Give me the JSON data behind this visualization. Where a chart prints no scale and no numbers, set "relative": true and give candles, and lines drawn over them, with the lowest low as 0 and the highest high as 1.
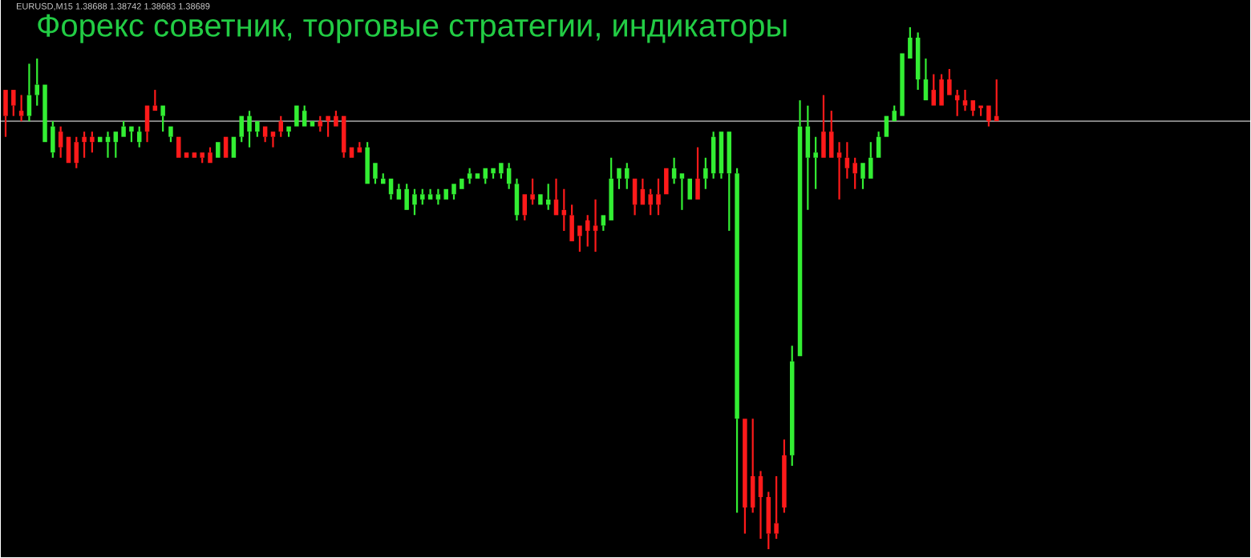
{
  "chart_data": {
    "type": "candlestick",
    "title": "Форекс советник, торговые стратегии, индикаторы",
    "annotations": [
      "EURUSD,M15  1.38688 1.38742 1.38683 1.38689"
    ],
    "relative": true,
    "categories": [
      null,
      null,
      null,
      null,
      null,
      null,
      null,
      null,
      null,
      null,
      null,
      null,
      null,
      null,
      null,
      null,
      null,
      null,
      null,
      null,
      null,
      null,
      null,
      null,
      null,
      null,
      null,
      null,
      null,
      null,
      null,
      null,
      null,
      null,
      null,
      null,
      null,
      null,
      null,
      null,
      null,
      null,
      null,
      null,
      null,
      null,
      null,
      null,
      null,
      null,
      null,
      null,
      null,
      null,
      null,
      null,
      null,
      null,
      null,
      null,
      null,
      null,
      null,
      null,
      null,
      null,
      null,
      null,
      null,
      null,
      null,
      null,
      null,
      null,
      null,
      null,
      null,
      null,
      null,
      null,
      null,
      null,
      null,
      null,
      null,
      null,
      null,
      null,
      null,
      null,
      null,
      null,
      null,
      null,
      null,
      null,
      null,
      null,
      null,
      null,
      null,
      null,
      null,
      null,
      null,
      null,
      null,
      null,
      null,
      null,
      null,
      null,
      null,
      null,
      null,
      null,
      null,
      null,
      null,
      null,
      null,
      null,
      null,
      null,
      null,
      null,
      null
    ],
    "ohlc": [
      [
        0.88,
        0.88,
        0.79,
        0.83
      ],
      [
        0.88,
        0.88,
        0.83,
        0.85
      ],
      [
        0.84,
        0.87,
        0.82,
        0.83
      ],
      [
        0.83,
        0.93,
        0.82,
        0.87
      ],
      [
        0.87,
        0.94,
        0.85,
        0.89
      ],
      [
        0.78,
        0.89,
        0.78,
        0.89
      ],
      [
        0.76,
        0.82,
        0.75,
        0.81
      ],
      [
        0.8,
        0.81,
        0.75,
        0.77
      ],
      [
        0.79,
        0.79,
        0.74,
        0.74
      ],
      [
        0.78,
        0.79,
        0.73,
        0.74
      ],
      [
        0.79,
        0.8,
        0.75,
        0.78
      ],
      [
        0.79,
        0.8,
        0.76,
        0.78
      ],
      [
        0.78,
        0.79,
        0.78,
        0.79
      ],
      [
        0.78,
        0.8,
        0.75,
        0.79
      ],
      [
        0.78,
        0.8,
        0.75,
        0.8
      ],
      [
        0.79,
        0.82,
        0.79,
        0.81
      ],
      [
        0.8,
        0.81,
        0.78,
        0.81
      ],
      [
        0.78,
        0.81,
        0.77,
        0.8
      ],
      [
        0.85,
        0.85,
        0.78,
        0.8
      ],
      [
        0.85,
        0.88,
        0.84,
        0.84
      ],
      [
        0.83,
        0.85,
        0.8,
        0.85
      ],
      [
        0.79,
        0.81,
        0.78,
        0.81
      ],
      [
        0.79,
        0.79,
        0.75,
        0.75
      ],
      [
        0.76,
        0.76,
        0.75,
        0.75
      ],
      [
        0.76,
        0.76,
        0.75,
        0.75
      ],
      [
        0.76,
        0.76,
        0.74,
        0.75
      ],
      [
        0.76,
        0.77,
        0.74,
        0.74
      ],
      [
        0.75,
        0.78,
        0.75,
        0.78
      ],
      [
        0.79,
        0.79,
        0.75,
        0.75
      ],
      [
        0.75,
        0.79,
        0.75,
        0.79
      ],
      [
        0.79,
        0.83,
        0.78,
        0.83
      ],
      [
        0.8,
        0.84,
        0.77,
        0.83
      ],
      [
        0.8,
        0.82,
        0.79,
        0.82
      ],
      [
        0.81,
        0.81,
        0.78,
        0.79
      ],
      [
        0.8,
        0.8,
        0.77,
        0.79
      ],
      [
        0.82,
        0.83,
        0.79,
        0.8
      ],
      [
        0.8,
        0.81,
        0.79,
        0.81
      ],
      [
        0.81,
        0.85,
        0.81,
        0.85
      ],
      [
        0.81,
        0.85,
        0.81,
        0.84
      ],
      [
        0.81,
        0.82,
        0.81,
        0.82
      ],
      [
        0.82,
        0.83,
        0.8,
        0.81
      ],
      [
        0.83,
        0.83,
        0.79,
        0.82
      ],
      [
        0.83,
        0.84,
        0.81,
        0.81
      ],
      [
        0.83,
        0.83,
        0.75,
        0.76
      ],
      [
        0.77,
        0.77,
        0.75,
        0.75
      ],
      [
        0.77,
        0.78,
        0.76,
        0.76
      ],
      [
        0.7,
        0.78,
        0.7,
        0.77
      ],
      [
        0.71,
        0.74,
        0.7,
        0.74
      ],
      [
        0.7,
        0.72,
        0.7,
        0.71
      ],
      [
        0.68,
        0.71,
        0.67,
        0.71
      ],
      [
        0.67,
        0.7,
        0.67,
        0.69
      ],
      [
        0.65,
        0.7,
        0.65,
        0.69
      ],
      [
        0.66,
        0.69,
        0.64,
        0.68
      ],
      [
        0.67,
        0.69,
        0.66,
        0.68
      ],
      [
        0.67,
        0.69,
        0.67,
        0.68
      ],
      [
        0.67,
        0.69,
        0.66,
        0.68
      ],
      [
        0.67,
        0.69,
        0.67,
        0.69
      ],
      [
        0.68,
        0.7,
        0.67,
        0.7
      ],
      [
        0.69,
        0.71,
        0.69,
        0.71
      ],
      [
        0.71,
        0.73,
        0.7,
        0.72
      ],
      [
        0.71,
        0.72,
        0.71,
        0.72
      ],
      [
        0.71,
        0.73,
        0.7,
        0.73
      ],
      [
        0.72,
        0.73,
        0.71,
        0.73
      ],
      [
        0.72,
        0.74,
        0.71,
        0.74
      ],
      [
        0.7,
        0.74,
        0.69,
        0.73
      ],
      [
        0.64,
        0.71,
        0.63,
        0.7
      ],
      [
        0.68,
        0.68,
        0.63,
        0.64
      ],
      [
        0.68,
        0.71,
        0.66,
        0.67
      ],
      [
        0.66,
        0.68,
        0.66,
        0.68
      ],
      [
        0.66,
        0.7,
        0.65,
        0.67
      ],
      [
        0.67,
        0.71,
        0.64,
        0.64
      ],
      [
        0.65,
        0.69,
        0.61,
        0.64
      ],
      [
        0.64,
        0.66,
        0.59,
        0.59
      ],
      [
        0.62,
        0.62,
        0.57,
        0.6
      ],
      [
        0.63,
        0.64,
        0.58,
        0.61
      ],
      [
        0.62,
        0.67,
        0.57,
        0.61
      ],
      [
        0.62,
        0.64,
        0.61,
        0.64
      ],
      [
        0.63,
        0.75,
        0.63,
        0.71
      ],
      [
        0.71,
        0.73,
        0.69,
        0.73
      ],
      [
        0.71,
        0.74,
        0.69,
        0.73
      ],
      [
        0.71,
        0.71,
        0.64,
        0.66
      ],
      [
        0.69,
        0.71,
        0.66,
        0.66
      ],
      [
        0.68,
        0.69,
        0.64,
        0.66
      ],
      [
        0.68,
        0.71,
        0.64,
        0.66
      ],
      [
        0.73,
        0.73,
        0.68,
        0.68
      ],
      [
        0.71,
        0.75,
        0.7,
        0.73
      ],
      [
        0.71,
        0.72,
        0.65,
        0.72
      ],
      [
        0.67,
        0.71,
        0.67,
        0.71
      ],
      [
        0.71,
        0.77,
        0.67,
        0.67
      ],
      [
        0.71,
        0.75,
        0.69,
        0.73
      ],
      [
        0.72,
        0.8,
        0.71,
        0.79
      ],
      [
        0.72,
        0.8,
        0.71,
        0.8
      ],
      [
        0.72,
        0.8,
        0.61,
        0.8
      ],
      [
        0.25,
        0.73,
        0.07,
        0.72
      ],
      [
        0.25,
        0.25,
        0.03,
        0.08
      ],
      [
        0.14,
        0.25,
        0.07,
        0.08
      ],
      [
        0.14,
        0.15,
        0.02,
        0.1
      ],
      [
        0.1,
        0.11,
        0.0,
        0.03
      ],
      [
        0.05,
        0.14,
        0.02,
        0.03
      ],
      [
        0.18,
        0.21,
        0.07,
        0.08
      ],
      [
        0.18,
        0.39,
        0.16,
        0.36
      ],
      [
        0.37,
        0.86,
        0.37,
        0.81
      ],
      [
        0.75,
        0.85,
        0.65,
        0.81
      ],
      [
        0.75,
        0.79,
        0.69,
        0.76
      ],
      [
        0.8,
        0.87,
        0.75,
        0.75
      ],
      [
        0.8,
        0.84,
        0.75,
        0.75
      ],
      [
        0.76,
        0.78,
        0.67,
        0.75
      ],
      [
        0.75,
        0.78,
        0.71,
        0.73
      ],
      [
        0.74,
        0.75,
        0.69,
        0.72
      ],
      [
        0.71,
        0.74,
        0.69,
        0.74
      ],
      [
        0.71,
        0.78,
        0.71,
        0.75
      ],
      [
        0.75,
        0.8,
        0.75,
        0.79
      ],
      [
        0.79,
        0.83,
        0.79,
        0.83
      ],
      [
        0.82,
        0.85,
        0.82,
        0.84
      ],
      [
        0.83,
        0.95,
        0.83,
        0.95
      ],
      [
        0.94,
        1.0,
        0.94,
        0.98
      ],
      [
        0.9,
        0.99,
        0.88,
        0.98
      ],
      [
        0.86,
        0.94,
        0.86,
        0.9
      ],
      [
        0.88,
        0.91,
        0.85,
        0.85
      ],
      [
        0.9,
        0.91,
        0.85,
        0.85
      ],
      [
        0.9,
        0.92,
        0.87,
        0.87
      ],
      [
        0.87,
        0.88,
        0.83,
        0.86
      ],
      [
        0.86,
        0.88,
        0.84,
        0.85
      ],
      [
        0.86,
        0.86,
        0.83,
        0.84
      ],
      [
        0.85,
        0.85,
        0.83,
        0.845
      ],
      [
        0.85,
        0.85,
        0.81,
        0.82
      ],
      [
        0.83,
        0.9,
        0.82,
        0.82
      ]
    ],
    "colors": [
      "#ff1a1a",
      "#ff1a1a",
      "#ff1a1a",
      "#33ee33",
      "#33ee33",
      "#33ee33",
      "#33ee33",
      "#ff1a1a",
      "#ff1a1a",
      "#ff1a1a",
      "#ff1a1a",
      "#ff1a1a",
      "#33ee33",
      "#33ee33",
      "#33ee33",
      "#33ee33",
      "#33ee33",
      "#33ee33",
      "#ff1a1a",
      "#ff1a1a",
      "#33ee33",
      "#33ee33",
      "#ff1a1a",
      "#ff1a1a",
      "#ff1a1a",
      "#ff1a1a",
      "#ff1a1a",
      "#33ee33",
      "#ff1a1a",
      "#33ee33",
      "#33ee33",
      "#33ee33",
      "#33ee33",
      "#ff1a1a",
      "#ff1a1a",
      "#ff1a1a",
      "#33ee33",
      "#33ee33",
      "#33ee33",
      "#33ee33",
      "#ff1a1a",
      "#ff1a1a",
      "#ff1a1a",
      "#ff1a1a",
      "#ff1a1a",
      "#ff1a1a",
      "#33ee33",
      "#33ee33",
      "#33ee33",
      "#33ee33",
      "#33ee33",
      "#33ee33",
      "#33ee33",
      "#33ee33",
      "#33ee33",
      "#33ee33",
      "#33ee33",
      "#33ee33",
      "#33ee33",
      "#33ee33",
      "#33ee33",
      "#33ee33",
      "#33ee33",
      "#33ee33",
      "#33ee33",
      "#33ee33",
      "#ff1a1a",
      "#ff1a1a",
      "#33ee33",
      "#33ee33",
      "#ff1a1a",
      "#ff1a1a",
      "#ff1a1a",
      "#ff1a1a",
      "#ff1a1a",
      "#ff1a1a",
      "#33ee33",
      "#33ee33",
      "#33ee33",
      "#33ee33",
      "#ff1a1a",
      "#ff1a1a",
      "#ff1a1a",
      "#ff1a1a",
      "#ff1a1a",
      "#33ee33",
      "#33ee33",
      "#33ee33",
      "#ff1a1a",
      "#33ee33",
      "#33ee33",
      "#33ee33",
      "#33ee33",
      "#33ee33",
      "#ff1a1a",
      "#ff1a1a",
      "#ff1a1a",
      "#ff1a1a",
      "#ff1a1a",
      "#ff1a1a",
      "#33ee33",
      "#33ee33",
      "#33ee33",
      "#33ee33",
      "#ff1a1a",
      "#ff1a1a",
      "#ff1a1a",
      "#ff1a1a",
      "#ff1a1a",
      "#33ee33",
      "#33ee33",
      "#33ee33",
      "#33ee33",
      "#33ee33",
      "#33ee33",
      "#33ee33",
      "#33ee33",
      "#33ee33",
      "#ff1a1a",
      "#ff1a1a",
      "#ff1a1a",
      "#ff1a1a",
      "#ff1a1a",
      "#ff1a1a",
      "#ff1a1a",
      "#ff1a1a",
      "#ff1a1a"
    ],
    "ref_lines": [
      {
        "axis": "y",
        "value": 0.82,
        "color": "#909090"
      }
    ]
  }
}
